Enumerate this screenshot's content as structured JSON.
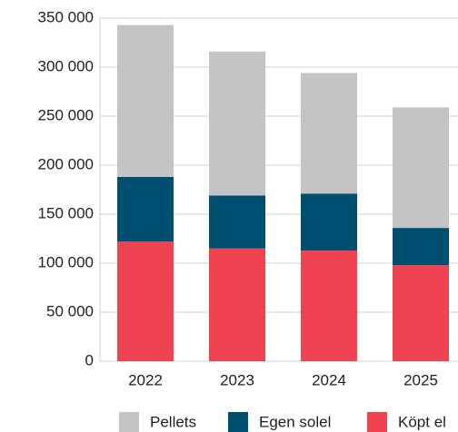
{
  "chart_data": {
    "type": "stacked_bar",
    "categories": [
      "2022",
      "2023",
      "2024",
      "2025"
    ],
    "series": [
      {
        "name": "Köpt el",
        "color": "#ef4351",
        "values": [
          122000,
          115000,
          113000,
          98000
        ]
      },
      {
        "name": "Egen solel",
        "color": "#004f71",
        "values": [
          66000,
          54000,
          58000,
          38000
        ]
      },
      {
        "name": "Pellets",
        "color": "#c4c4c6",
        "values": [
          155000,
          147000,
          123000,
          123000
        ]
      }
    ],
    "ylim": [
      0,
      350000
    ],
    "yticks": [
      0,
      {
        "value": 50000,
        "label": "50 000"
      },
      {
        "value": 100000,
        "label": "100 000"
      },
      {
        "value": 150000,
        "label": "150 000"
      },
      {
        "value": 200000,
        "label": "200 000"
      },
      {
        "value": 250000,
        "label": "250 000"
      },
      {
        "value": 300000,
        "label": "300 000"
      },
      {
        "value": 350000,
        "label": "350 000"
      }
    ],
    "grid": true,
    "legend": "bottom"
  }
}
